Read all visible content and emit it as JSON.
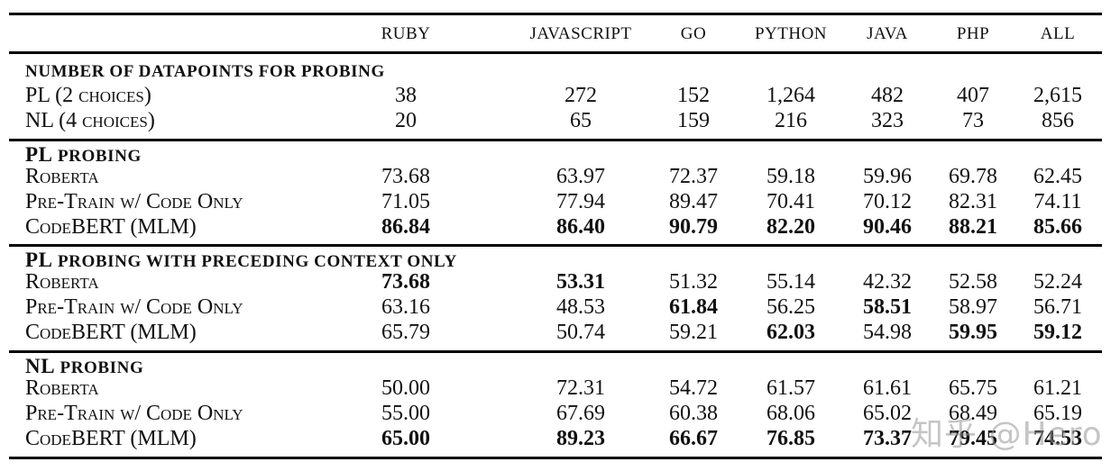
{
  "table": {
    "columns": [
      "RUBY",
      "JAVASCRIPT",
      "GO",
      "PYTHON",
      "JAVA",
      "PHP",
      "ALL"
    ],
    "sections": [
      {
        "title_lead": "",
        "title": "NUMBER OF DATAPOINTS FOR PROBING",
        "rows": [
          {
            "label": "PL (2 choices)",
            "values": [
              "38",
              "272",
              "152",
              "1,264",
              "482",
              "407",
              "2,615"
            ],
            "bold": [
              false,
              false,
              false,
              false,
              false,
              false,
              false
            ]
          },
          {
            "label": "NL (4 choices)",
            "values": [
              "20",
              "65",
              "159",
              "216",
              "323",
              "73",
              "856"
            ],
            "bold": [
              false,
              false,
              false,
              false,
              false,
              false,
              false
            ]
          }
        ]
      },
      {
        "title_lead": "PL",
        "title": " PROBING",
        "rows": [
          {
            "label": "Roberta",
            "values": [
              "73.68",
              "63.97",
              "72.37",
              "59.18",
              "59.96",
              "69.78",
              "62.45"
            ],
            "bold": [
              false,
              false,
              false,
              false,
              false,
              false,
              false
            ]
          },
          {
            "label": "Pre-Train w/ Code Only",
            "values": [
              "71.05",
              "77.94",
              "89.47",
              "70.41",
              "70.12",
              "82.31",
              "74.11"
            ],
            "bold": [
              false,
              false,
              false,
              false,
              false,
              false,
              false
            ]
          },
          {
            "label": "CodeBERT (MLM)",
            "values": [
              "86.84",
              "86.40",
              "90.79",
              "82.20",
              "90.46",
              "88.21",
              "85.66"
            ],
            "bold": [
              true,
              true,
              true,
              true,
              true,
              true,
              true
            ]
          }
        ]
      },
      {
        "title_lead": "PL",
        "title": " PROBING WITH PRECEDING CONTEXT ONLY",
        "rows": [
          {
            "label": "Roberta",
            "values": [
              "73.68",
              "53.31",
              "51.32",
              "55.14",
              "42.32",
              "52.58",
              "52.24"
            ],
            "bold": [
              true,
              true,
              false,
              false,
              false,
              false,
              false
            ]
          },
          {
            "label": "Pre-Train w/ Code Only",
            "values": [
              "63.16",
              "48.53",
              "61.84",
              "56.25",
              "58.51",
              "58.97",
              "56.71"
            ],
            "bold": [
              false,
              false,
              true,
              false,
              true,
              false,
              false
            ]
          },
          {
            "label": "CodeBERT (MLM)",
            "values": [
              "65.79",
              "50.74",
              "59.21",
              "62.03",
              "54.98",
              "59.95",
              "59.12"
            ],
            "bold": [
              false,
              false,
              false,
              true,
              false,
              true,
              true
            ]
          }
        ]
      },
      {
        "title_lead": "NL",
        "title": " PROBING",
        "rows": [
          {
            "label": "Roberta",
            "values": [
              "50.00",
              "72.31",
              "54.72",
              "61.57",
              "61.61",
              "65.75",
              "61.21"
            ],
            "bold": [
              false,
              false,
              false,
              false,
              false,
              false,
              false
            ]
          },
          {
            "label": "Pre-Train w/ Code Only",
            "values": [
              "55.00",
              "67.69",
              "60.38",
              "68.06",
              "65.02",
              "68.49",
              "65.19"
            ],
            "bold": [
              false,
              false,
              false,
              false,
              false,
              false,
              false
            ]
          },
          {
            "label": "CodeBERT (MLM)",
            "values": [
              "65.00",
              "89.23",
              "66.67",
              "76.85",
              "73.37",
              "79.45",
              "74.53"
            ],
            "bold": [
              true,
              true,
              true,
              true,
              true,
              true,
              true
            ]
          }
        ]
      }
    ]
  },
  "watermark": "知乎 @Hero"
}
